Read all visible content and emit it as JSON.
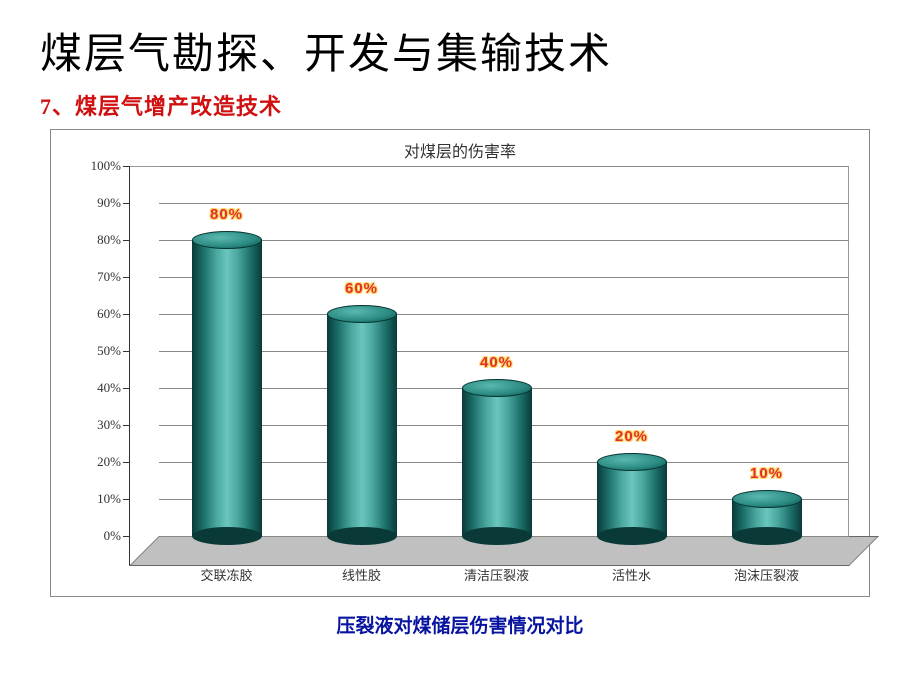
{
  "main_title": "煤层气勘探、开发与集输技术",
  "sub_title": "7、煤层气增产改造技术",
  "sub_title_color": "#d01010",
  "caption": "压裂液对煤储层伤害情况对比",
  "caption_color": "#0814a0",
  "chart": {
    "type": "cylinder-bar-3d",
    "title": "对煤层的伤害率",
    "title_fontsize": 16,
    "background_color": "#ffffff",
    "floor_color": "#c0c0c0",
    "grid_color": "#888888",
    "bar_gradient": [
      "#0a3a38",
      "#1a6b66",
      "#4aa8a0",
      "#6ac5bd"
    ],
    "value_label_color": "#e03030",
    "value_label_outline": "#ffd966",
    "ylim": [
      0,
      100
    ],
    "ytick_step": 10,
    "yticks": [
      "0%",
      "10%",
      "20%",
      "30%",
      "40%",
      "50%",
      "60%",
      "70%",
      "80%",
      "90%",
      "100%"
    ],
    "categories": [
      "交联冻胶",
      "线性胶",
      "清洁压裂液",
      "活性水",
      "泡沫压裂液"
    ],
    "values": [
      80,
      60,
      40,
      20,
      10
    ],
    "value_labels": [
      "80%",
      "60%",
      "40%",
      "20%",
      "10%"
    ]
  }
}
